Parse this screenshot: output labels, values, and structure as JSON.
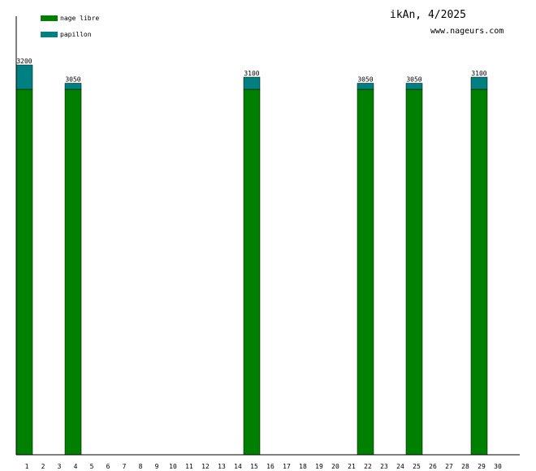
{
  "chart_data": {
    "type": "bar",
    "stacked": true,
    "title": "ikAn, 4/2025",
    "subtitle": "www.nageurs.com",
    "xlabel": "",
    "ylabel": "",
    "ylim": [
      0,
      3300
    ],
    "grid": false,
    "legend_position": "top-left",
    "categories": [
      "1",
      "2",
      "3",
      "4",
      "5",
      "6",
      "7",
      "8",
      "9",
      "10",
      "11",
      "12",
      "13",
      "14",
      "15",
      "16",
      "17",
      "18",
      "19",
      "20",
      "21",
      "22",
      "23",
      "24",
      "25",
      "26",
      "27",
      "28",
      "29",
      "30"
    ],
    "series": [
      {
        "name": "nage libre",
        "color": "#008000",
        "values": [
          3000,
          0,
          0,
          3000,
          0,
          0,
          0,
          0,
          0,
          0,
          0,
          0,
          0,
          0,
          3000,
          0,
          0,
          0,
          0,
          0,
          0,
          3000,
          0,
          0,
          3000,
          0,
          0,
          0,
          3000,
          0
        ]
      },
      {
        "name": "papillon",
        "color": "#008080",
        "values": [
          200,
          0,
          0,
          50,
          0,
          0,
          0,
          0,
          0,
          0,
          0,
          0,
          0,
          0,
          100,
          0,
          0,
          0,
          0,
          0,
          0,
          50,
          0,
          0,
          50,
          0,
          0,
          0,
          100,
          0
        ]
      }
    ],
    "totals": [
      "3200",
      "",
      "",
      "3050",
      "",
      "",
      "",
      "",
      "",
      "",
      "",
      "",
      "",
      "",
      "3100",
      "",
      "",
      "",
      "",
      "",
      "",
      "3050",
      "",
      "",
      "3050",
      "",
      "",
      "",
      "3100",
      ""
    ]
  }
}
